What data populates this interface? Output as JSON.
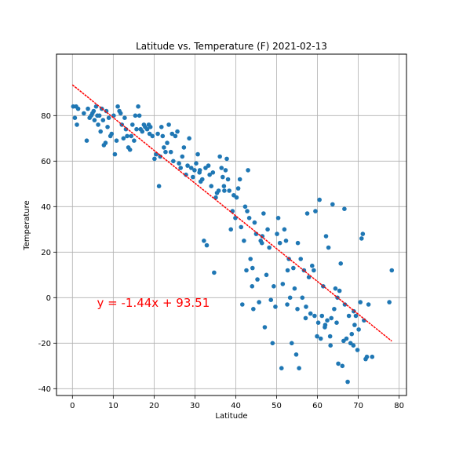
{
  "chart_data": {
    "type": "scatter",
    "title": "Latitude vs. Temperature (F) 2021-02-13",
    "xlabel": "Latitude",
    "ylabel": "Temperature",
    "xlim": [
      -3.9,
      81.8
    ],
    "ylim": [
      -43,
      107
    ],
    "xticks": [
      0,
      10,
      20,
      30,
      40,
      50,
      60,
      70,
      80
    ],
    "yticks": [
      -40,
      -20,
      0,
      20,
      40,
      60,
      80
    ],
    "grid": true,
    "point_color": "#1f77b4",
    "line_color": "#ff0000",
    "regression": {
      "slope": -1.44,
      "intercept": 93.51,
      "x_range": [
        0,
        78.2
      ]
    },
    "annotation": {
      "text": "y = -1.44x + 93.51",
      "x": 6,
      "y": -4,
      "color": "#ff0000"
    },
    "points": [
      [
        0.2,
        84
      ],
      [
        0.6,
        79
      ],
      [
        0.9,
        84
      ],
      [
        1.1,
        76
      ],
      [
        1.4,
        83
      ],
      [
        2.8,
        81
      ],
      [
        3.5,
        69
      ],
      [
        3.8,
        83
      ],
      [
        4.2,
        79
      ],
      [
        4.6,
        80
      ],
      [
        4.9,
        81
      ],
      [
        5.2,
        82
      ],
      [
        5.4,
        78
      ],
      [
        5.8,
        84
      ],
      [
        6.1,
        80
      ],
      [
        6.3,
        76
      ],
      [
        6.6,
        80
      ],
      [
        6.9,
        73
      ],
      [
        7.2,
        83
      ],
      [
        7.5,
        78
      ],
      [
        7.7,
        67
      ],
      [
        8.1,
        68
      ],
      [
        8.3,
        82
      ],
      [
        8.6,
        75
      ],
      [
        8.9,
        79
      ],
      [
        9.3,
        71
      ],
      [
        9.6,
        72
      ],
      [
        10.1,
        80
      ],
      [
        10.4,
        63
      ],
      [
        10.8,
        69
      ],
      [
        11.1,
        84
      ],
      [
        11.5,
        82
      ],
      [
        11.8,
        81
      ],
      [
        12.1,
        76
      ],
      [
        12.5,
        70
      ],
      [
        12.8,
        79
      ],
      [
        13.1,
        74
      ],
      [
        13.4,
        71
      ],
      [
        13.7,
        66
      ],
      [
        14.1,
        65
      ],
      [
        14.4,
        71
      ],
      [
        14.7,
        76
      ],
      [
        15.1,
        69
      ],
      [
        15.4,
        80
      ],
      [
        15.7,
        74
      ],
      [
        16.1,
        84
      ],
      [
        16.4,
        80
      ],
      [
        16.7,
        74
      ],
      [
        17.1,
        73
      ],
      [
        17.5,
        76
      ],
      [
        17.8,
        75
      ],
      [
        18.3,
        74
      ],
      [
        18.7,
        76
      ],
      [
        19.1,
        75
      ],
      [
        19.6,
        71
      ],
      [
        20.1,
        61
      ],
      [
        20.5,
        63
      ],
      [
        20.9,
        72
      ],
      [
        21.2,
        49
      ],
      [
        21.5,
        62
      ],
      [
        21.8,
        75
      ],
      [
        22.1,
        71
      ],
      [
        22.4,
        66
      ],
      [
        22.8,
        64
      ],
      [
        23.2,
        68
      ],
      [
        23.6,
        76
      ],
      [
        24.1,
        64
      ],
      [
        24.7,
        60
      ],
      [
        25.2,
        71
      ],
      [
        25.7,
        73
      ],
      [
        26.1,
        59
      ],
      [
        26.5,
        57
      ],
      [
        26.9,
        62
      ],
      [
        27.3,
        66
      ],
      [
        27.8,
        54
      ],
      [
        28.2,
        58
      ],
      [
        28.6,
        70
      ],
      [
        29.1,
        57
      ],
      [
        29.5,
        53
      ],
      [
        29.9,
        56
      ],
      [
        30.3,
        59
      ],
      [
        30.7,
        63
      ],
      [
        31.1,
        55
      ],
      [
        31.4,
        51
      ],
      [
        31.8,
        52
      ],
      [
        32.2,
        25
      ],
      [
        32.6,
        57
      ],
      [
        32.9,
        23
      ],
      [
        33.3,
        58
      ],
      [
        33.6,
        54
      ],
      [
        34.0,
        49
      ],
      [
        34.4,
        55
      ],
      [
        34.7,
        11
      ],
      [
        35.1,
        44
      ],
      [
        35.4,
        46
      ],
      [
        35.8,
        47
      ],
      [
        36.1,
        62
      ],
      [
        36.5,
        57
      ],
      [
        36.8,
        53
      ],
      [
        37.1,
        49
      ],
      [
        37.5,
        56
      ],
      [
        37.8,
        61
      ],
      [
        38.1,
        52
      ],
      [
        38.4,
        47
      ],
      [
        38.8,
        30
      ],
      [
        39.2,
        38
      ],
      [
        39.5,
        45
      ],
      [
        39.9,
        35
      ],
      [
        40.2,
        44
      ],
      [
        40.6,
        48
      ],
      [
        41.0,
        52
      ],
      [
        41.3,
        31
      ],
      [
        41.6,
        -3
      ],
      [
        42.0,
        25
      ],
      [
        42.3,
        40
      ],
      [
        42.6,
        12
      ],
      [
        43.0,
        56
      ],
      [
        43.3,
        35
      ],
      [
        43.6,
        17
      ],
      [
        44.0,
        5
      ],
      [
        44.3,
        -5
      ],
      [
        44.6,
        33
      ],
      [
        45.0,
        28
      ],
      [
        45.3,
        8
      ],
      [
        45.7,
        -2
      ],
      [
        46.1,
        25
      ],
      [
        46.4,
        24
      ],
      [
        46.8,
        37
      ],
      [
        47.1,
        -13
      ],
      [
        47.5,
        10
      ],
      [
        47.8,
        30
      ],
      [
        48.2,
        22
      ],
      [
        48.6,
        -1
      ],
      [
        49.0,
        -20
      ],
      [
        49.3,
        5
      ],
      [
        49.7,
        -4
      ],
      [
        50.1,
        28
      ],
      [
        50.4,
        35
      ],
      [
        50.8,
        24
      ],
      [
        51.2,
        -31
      ],
      [
        51.5,
        6
      ],
      [
        51.9,
        30
      ],
      [
        52.3,
        25
      ],
      [
        52.6,
        -3
      ],
      [
        53.0,
        17
      ],
      [
        53.3,
        0
      ],
      [
        53.7,
        -20
      ],
      [
        54.1,
        13
      ],
      [
        54.4,
        4
      ],
      [
        54.8,
        -25
      ],
      [
        55.1,
        -5
      ],
      [
        55.5,
        -31
      ],
      [
        55.9,
        17
      ],
      [
        56.3,
        0
      ],
      [
        56.7,
        12
      ],
      [
        57.1,
        -9
      ],
      [
        57.5,
        37
      ],
      [
        57.9,
        9
      ],
      [
        58.3,
        -7
      ],
      [
        58.7,
        14
      ],
      [
        59.1,
        12
      ],
      [
        59.5,
        38
      ],
      [
        59.9,
        -17
      ],
      [
        60.2,
        -11
      ],
      [
        60.5,
        43
      ],
      [
        60.8,
        -18
      ],
      [
        61.1,
        -8
      ],
      [
        61.4,
        5
      ],
      [
        61.8,
        -13
      ],
      [
        62.1,
        27
      ],
      [
        62.4,
        -10
      ],
      [
        62.7,
        22
      ],
      [
        63.1,
        -17
      ],
      [
        63.4,
        -9
      ],
      [
        63.7,
        41
      ],
      [
        64.1,
        -5
      ],
      [
        64.4,
        4
      ],
      [
        64.7,
        -11
      ],
      [
        65.1,
        -29
      ],
      [
        65.4,
        3
      ],
      [
        65.7,
        15
      ],
      [
        66.1,
        -30
      ],
      [
        66.4,
        -19
      ],
      [
        66.7,
        -3
      ],
      [
        67.1,
        -18
      ],
      [
        67.4,
        -37
      ],
      [
        67.7,
        -8
      ],
      [
        68.1,
        -20
      ],
      [
        68.4,
        -16
      ],
      [
        68.8,
        -21
      ],
      [
        69.1,
        -12
      ],
      [
        69.4,
        -8
      ],
      [
        69.8,
        -23
      ],
      [
        70.1,
        -14
      ],
      [
        70.5,
        -2
      ],
      [
        70.8,
        26
      ],
      [
        71.1,
        28
      ],
      [
        71.4,
        -10
      ],
      [
        71.8,
        -27
      ],
      [
        72.1,
        -26
      ],
      [
        72.5,
        -3
      ],
      [
        73.4,
        -26
      ],
      [
        77.6,
        -2
      ],
      [
        78.2,
        12
      ],
      [
        66.6,
        39
      ],
      [
        55.2,
        24
      ],
      [
        44.1,
        13
      ],
      [
        46.5,
        27
      ],
      [
        59.3,
        -8
      ],
      [
        61.9,
        -12
      ],
      [
        64.9,
        0
      ],
      [
        68.9,
        -6
      ],
      [
        63.2,
        -21
      ],
      [
        57.2,
        -4
      ],
      [
        52.7,
        12
      ],
      [
        42.8,
        38
      ],
      [
        37.2,
        47
      ],
      [
        31.2,
        56
      ],
      [
        24.4,
        72
      ],
      [
        18.9,
        72
      ]
    ]
  }
}
